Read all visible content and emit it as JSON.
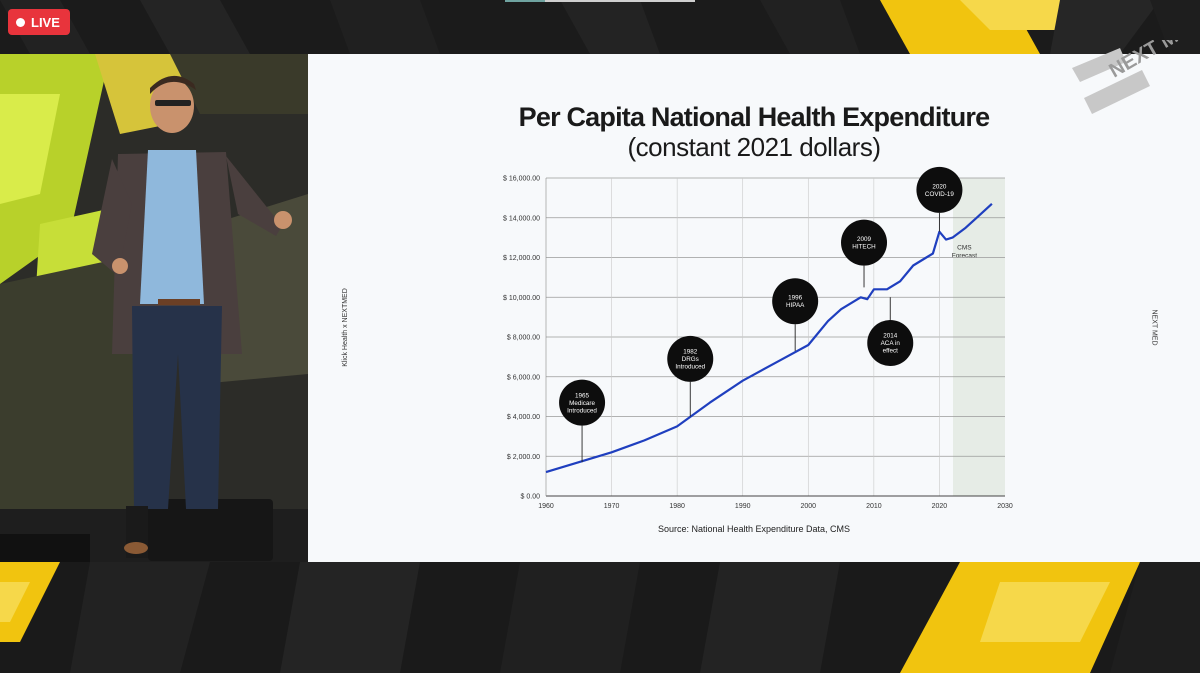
{
  "stream": {
    "live_label": "LIVE",
    "live_color": "#e8343c",
    "event_logo_text": "NEXT MED"
  },
  "slide": {
    "title": "Per Capita National Health Expenditure",
    "subtitle": "(constant 2021 dollars)",
    "left_vertical_text": "Klick Health x NEXTMED",
    "right_vertical_text": "NEXT MED",
    "source": "Source: National Health Expenditure Data, CMS"
  },
  "chart_data": {
    "type": "line",
    "xlim": [
      1960,
      2030
    ],
    "ylim": [
      0,
      16000
    ],
    "x_ticks": [
      "1960",
      "1970",
      "1980",
      "1990",
      "2000",
      "2010",
      "2020",
      "2030"
    ],
    "x_tick_values": [
      1960,
      1970,
      1980,
      1990,
      2000,
      2010,
      2020,
      2030
    ],
    "y_ticks": [
      "$ 0.00",
      "$ 2,000.00",
      "$ 4,000.00",
      "$ 6,000.00",
      "$ 8,000.00",
      "$ 10,000.00",
      "$ 12,000.00",
      "$ 14,000.00",
      "$ 16,000.00"
    ],
    "y_tick_values": [
      0,
      2000,
      4000,
      6000,
      8000,
      10000,
      12000,
      14000,
      16000
    ],
    "grid": true,
    "line_color": "#1f3fbf",
    "series": [
      {
        "x": [
          1960,
          1965,
          1970,
          1975,
          1980,
          1985,
          1990,
          1995,
          2000,
          2003,
          2005,
          2008,
          2009,
          2010,
          2012,
          2014,
          2016,
          2018,
          2019,
          2020,
          2021,
          2022,
          2024,
          2026,
          2028
        ],
        "values": [
          1200,
          1700,
          2200,
          2800,
          3500,
          4700,
          5800,
          6700,
          7600,
          8800,
          9400,
          10000,
          9900,
          10400,
          10400,
          10800,
          11600,
          12000,
          12200,
          13300,
          12900,
          13000,
          13500,
          14100,
          14700
        ]
      }
    ],
    "forecast_region": {
      "x_start": 2021,
      "x_end": 2030,
      "label_line1": "CMS",
      "label_line2": "Forecast"
    },
    "annotations": [
      {
        "x": 1965.5,
        "y": 1700,
        "bubble_y": 4700,
        "lines": [
          "1965",
          "Medicare",
          "Introduced"
        ]
      },
      {
        "x": 1982,
        "y": 4000,
        "bubble_y": 6900,
        "lines": [
          "1982",
          "DRGs",
          "Introduced"
        ]
      },
      {
        "x": 1998,
        "y": 7300,
        "bubble_y": 9800,
        "lines": [
          "1996",
          "HIPAA"
        ]
      },
      {
        "x": 2008.5,
        "y": 10500,
        "bubble_y": 12750,
        "lines": [
          "2009",
          "HITECH"
        ]
      },
      {
        "x": 2012.5,
        "y": 10000,
        "bubble_y": 7700,
        "lines": [
          "2014",
          "ACA in",
          "effect"
        ]
      },
      {
        "x": 2020,
        "y": 13300,
        "bubble_y": 15400,
        "lines": [
          "2020",
          "COVID-19"
        ]
      }
    ]
  }
}
